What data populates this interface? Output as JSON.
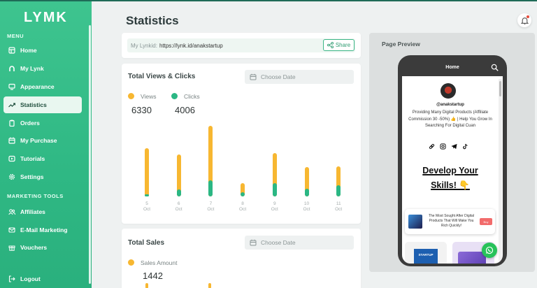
{
  "brand": {
    "logo": "LYMK"
  },
  "sidebar": {
    "menu_label": "MENU",
    "items": [
      {
        "label": "Home",
        "icon": "home-icon"
      },
      {
        "label": "My Lynk",
        "icon": "link-icon"
      },
      {
        "label": "Appearance",
        "icon": "monitor-icon"
      },
      {
        "label": "Statistics",
        "icon": "trend-icon"
      },
      {
        "label": "Orders",
        "icon": "clipboard-icon"
      },
      {
        "label": "My Purchase",
        "icon": "calendar-icon"
      },
      {
        "label": "Tutorials",
        "icon": "play-icon"
      },
      {
        "label": "Settings",
        "icon": "gear-icon"
      }
    ],
    "marketing_label": "MARKETING TOOLS",
    "marketing_items": [
      {
        "label": "Affiliates",
        "icon": "users-icon"
      },
      {
        "label": "E-Mail Marketing",
        "icon": "mail-icon"
      },
      {
        "label": "Vouchers",
        "icon": "gift-icon"
      }
    ],
    "logout_label": "Logout"
  },
  "header": {
    "title": "Statistics"
  },
  "link_card": {
    "label": "My Lynkid:",
    "url": "https://lynk.id/anakstartup",
    "share_label": "Share"
  },
  "views_card": {
    "title": "Total Views & Clicks",
    "date_placeholder": "Choose Date",
    "views_label": "Views",
    "views_value": "6330",
    "clicks_label": "Clicks",
    "clicks_value": "4006"
  },
  "sales_card": {
    "title": "Total Sales",
    "date_placeholder": "Choose Date",
    "sales_label": "Sales Amount",
    "sales_value": "1442"
  },
  "colors": {
    "views": "#f7b731",
    "clicks": "#2bb784",
    "brand": "#34bd89"
  },
  "chart_data": {
    "type": "bar",
    "categories": [
      "5 Oct",
      "6 Oct",
      "7 Oct",
      "8 Oct",
      "9 Oct",
      "10 Oct",
      "11 Oct"
    ],
    "series": [
      {
        "name": "Views",
        "values": [
          1060,
          920,
          1560,
          300,
          960,
          640,
          660
        ]
      },
      {
        "name": "Clicks",
        "values": [
          30,
          150,
          360,
          100,
          300,
          170,
          240
        ]
      }
    ],
    "ylim": [
      0,
      1600
    ]
  },
  "preview": {
    "title": "Page Preview",
    "phone_title": "Home",
    "username": "@anakstartup",
    "bio": "Providing Many Digital Products (Affiliate Commission 30 -50%) 👍 | Help You Grow In Searching For Digital Cuan",
    "headline_line1": "Develop Your",
    "headline_line2": "Skills! 👇",
    "product_text": "The Most Sought After Digital Products That Will Make You Rich Quickly!",
    "product_button": "Buy",
    "tile1_text": "STARTUP"
  }
}
